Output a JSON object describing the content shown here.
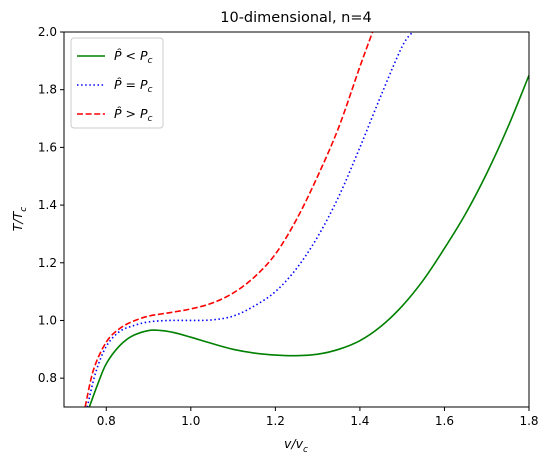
{
  "chart_data": {
    "type": "line",
    "title": "10-dimensional, n=4",
    "xlabel": "v/v_c",
    "ylabel": "T/T_c",
    "xlim": [
      0.7,
      1.8
    ],
    "ylim": [
      0.7,
      2.0
    ],
    "x_ticks": [
      0.8,
      1.0,
      1.2,
      1.4,
      1.6,
      1.8
    ],
    "x_tick_labels": [
      "0.8",
      "1.0",
      "1.2",
      "1.4",
      "1.6",
      "1.8"
    ],
    "y_ticks": [
      0.8,
      1.0,
      1.2,
      1.4,
      1.6,
      1.8,
      2.0
    ],
    "y_tick_labels": [
      "0.8",
      "1.0",
      "1.2",
      "1.4",
      "1.6",
      "1.8",
      "2.0"
    ],
    "grid": false,
    "legend_position": "top-left",
    "series": [
      {
        "name": "P̂ < P_c",
        "color": "#008000",
        "dash": "solid",
        "x": [
          0.76,
          0.78,
          0.8,
          0.83,
          0.86,
          0.9,
          0.93,
          0.96,
          1.0,
          1.05,
          1.1,
          1.15,
          1.2,
          1.25,
          1.3,
          1.35,
          1.4,
          1.45,
          1.5,
          1.55,
          1.6,
          1.65,
          1.7,
          1.75,
          1.8
        ],
        "y": [
          0.7,
          0.78,
          0.85,
          0.91,
          0.945,
          0.965,
          0.965,
          0.958,
          0.942,
          0.92,
          0.9,
          0.887,
          0.88,
          0.878,
          0.883,
          0.9,
          0.93,
          0.98,
          1.05,
          1.14,
          1.25,
          1.37,
          1.51,
          1.67,
          1.85
        ]
      },
      {
        "name": "P̂ = P_c",
        "color": "#0000ff",
        "dash": "dotted",
        "x": [
          0.755,
          0.775,
          0.8,
          0.83,
          0.86,
          0.9,
          0.95,
          1.0,
          1.05,
          1.1,
          1.15,
          1.2,
          1.25,
          1.3,
          1.35,
          1.4,
          1.45,
          1.5,
          1.525
        ],
        "y": [
          0.7,
          0.82,
          0.91,
          0.96,
          0.98,
          0.995,
          1.0,
          1.0,
          1.002,
          1.015,
          1.05,
          1.1,
          1.18,
          1.29,
          1.43,
          1.6,
          1.78,
          1.95,
          2.0
        ]
      },
      {
        "name": "P̂ > P_c",
        "color": "#ff0000",
        "dash": "dashed",
        "x": [
          0.75,
          0.77,
          0.8,
          0.83,
          0.86,
          0.9,
          0.95,
          1.0,
          1.05,
          1.1,
          1.15,
          1.2,
          1.25,
          1.3,
          1.35,
          1.4,
          1.43
        ],
        "y": [
          0.7,
          0.83,
          0.925,
          0.97,
          0.995,
          1.015,
          1.027,
          1.04,
          1.06,
          1.095,
          1.15,
          1.23,
          1.35,
          1.5,
          1.67,
          1.88,
          2.0
        ]
      }
    ]
  },
  "legend": {
    "items": [
      {
        "prefix": "P̂",
        "relation": " < ",
        "subject": "P",
        "subscript": "c"
      },
      {
        "prefix": "P̂",
        "relation": " = ",
        "subject": "P",
        "subscript": "c"
      },
      {
        "prefix": "P̂",
        "relation": " > ",
        "subject": "P",
        "subscript": "c"
      }
    ]
  },
  "axis_text": {
    "x_main": "v/v",
    "x_sub": "c",
    "y_main": "T/T",
    "y_sub": "c"
  }
}
